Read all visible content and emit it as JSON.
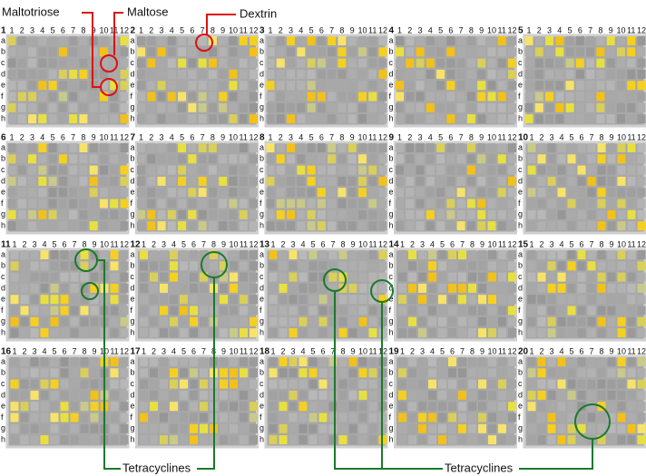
{
  "plates": [
    "1",
    "2",
    "3",
    "4",
    "5",
    "6",
    "7",
    "8",
    "9",
    "10",
    "11",
    "12",
    "13",
    "14",
    "15",
    "16",
    "17",
    "18",
    "19",
    "20"
  ],
  "column_labels": [
    "1",
    "2",
    "3",
    "4",
    "5",
    "6",
    "7",
    "8",
    "9",
    "10",
    "11",
    "12"
  ],
  "row_labels": [
    "a",
    "b",
    "c",
    "d",
    "e",
    "f",
    "g",
    "h"
  ],
  "annotations": {
    "red": [
      "Maltotriose",
      "Maltose",
      "Dextrin"
    ],
    "green": [
      "Tetracyclines",
      "Tetracyclines"
    ]
  }
}
